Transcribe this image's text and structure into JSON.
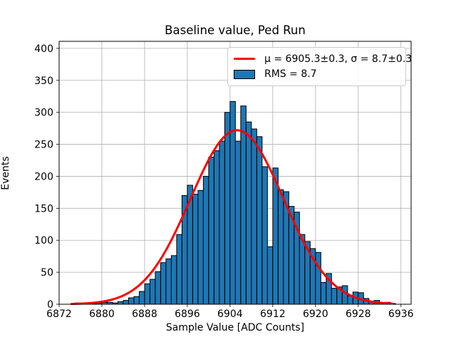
{
  "figure": {
    "title": "Baseline value, Ped Run",
    "xlabel": "Sample Value [ADC Counts]",
    "ylabel": "Events"
  },
  "legend": {
    "fit_label": "μ = 6905.3±0.3, σ = 8.7±0.3",
    "hist_label": "RMS = 8.7"
  },
  "chart_data": {
    "type": "bar",
    "subtype": "histogram-with-gaussian-fit",
    "title": "Baseline value, Ped Run",
    "xlabel": "Sample Value [ADC Counts]",
    "ylabel": "Events",
    "xlim": [
      6872,
      6937.9
    ],
    "ylim": [
      0,
      411
    ],
    "xticks": [
      6872,
      6880,
      6888,
      6896,
      6904,
      6912,
      6920,
      6928,
      6936
    ],
    "yticks": [
      0,
      50,
      100,
      150,
      200,
      250,
      300,
      350,
      400
    ],
    "grid": true,
    "grid_color": "#b0b0b0",
    "legend_position": "upper right",
    "bar_color": "#1f77b4",
    "bar_edge_color": "#000000",
    "fit_color": "#ff0000",
    "bin_width": 1,
    "first_bin": 6875,
    "counts": [
      2,
      1,
      1,
      1,
      2,
      3,
      3,
      2,
      4,
      6,
      10,
      12,
      20,
      32,
      39,
      51,
      65,
      71,
      76,
      109,
      170,
      186,
      172,
      178,
      200,
      230,
      240,
      255,
      300,
      317,
      255,
      310,
      285,
      274,
      262,
      215,
      90,
      213,
      179,
      176,
      153,
      144,
      109,
      98,
      87,
      81,
      34,
      48,
      25,
      27,
      29,
      13,
      19,
      18,
      9,
      5,
      6,
      2,
      3,
      1
    ],
    "fit": {
      "mu": 6905.3,
      "mu_err": 0.3,
      "sigma": 8.7,
      "sigma_err": 0.3,
      "amplitude": 272,
      "x_range": [
        6874.3,
        6934.3
      ]
    },
    "rms": 8.7
  }
}
